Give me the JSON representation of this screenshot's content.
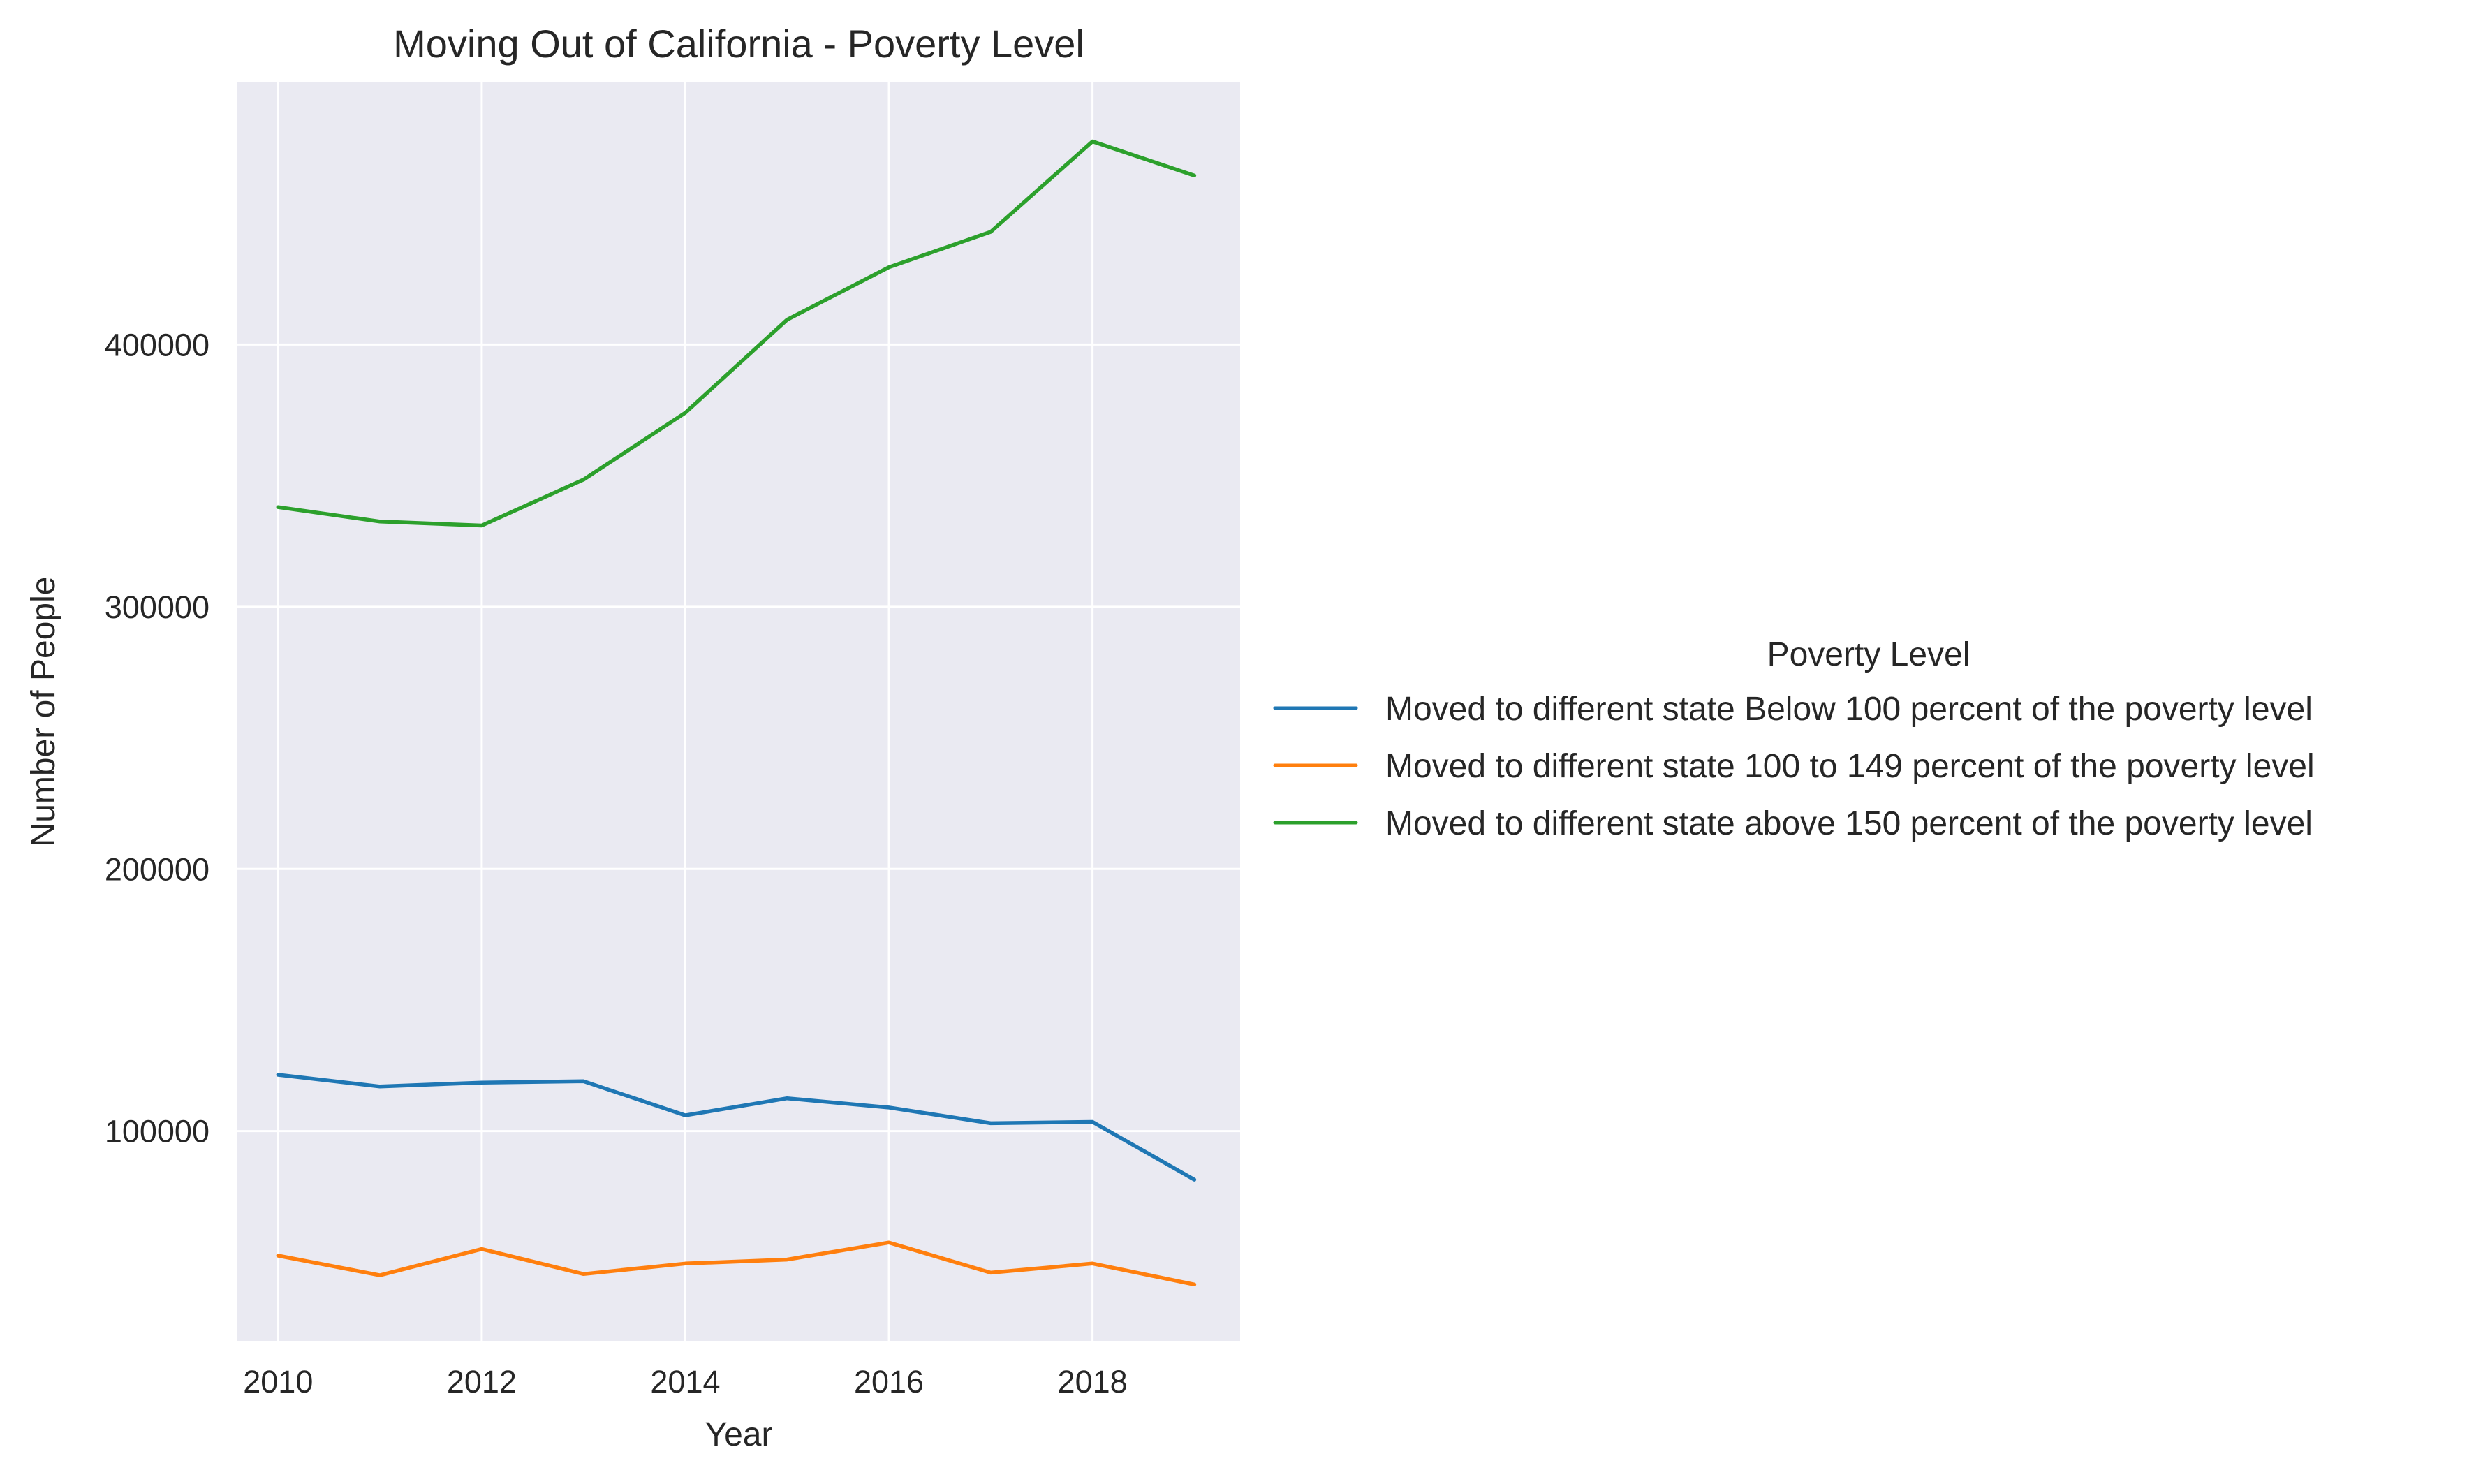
{
  "chart_data": {
    "type": "line",
    "title": "Moving Out of California - Poverty Level",
    "xlabel": "Year",
    "ylabel": "Number of People",
    "x": [
      2010,
      2011,
      2012,
      2013,
      2014,
      2015,
      2016,
      2017,
      2018,
      2019
    ],
    "xlim": [
      2009.6,
      2019.45
    ],
    "ylim": [
      20000,
      500000
    ],
    "xticks": [
      2010,
      2012,
      2014,
      2016,
      2018
    ],
    "yticks": [
      100000,
      200000,
      300000,
      400000
    ],
    "grid": true,
    "legend": {
      "title": "Poverty Level",
      "placement": "outside-right"
    },
    "series": [
      {
        "name": "Moved to different state Below 100 percent of the poverty level",
        "color": "#1f77b4",
        "values": [
          121500,
          117000,
          118500,
          119000,
          106000,
          112500,
          109000,
          103000,
          103500,
          81500
        ]
      },
      {
        "name": "Moved to different state 100 to 149 percent of the poverty level",
        "color": "#ff7f0e",
        "values": [
          52500,
          45000,
          55000,
          45500,
          49500,
          51000,
          57500,
          46000,
          49500,
          41500
        ]
      },
      {
        "name": "Moved to different state above 150 percent of the poverty level",
        "color": "#2ca02c",
        "values": [
          338000,
          332500,
          331000,
          348500,
          374000,
          409500,
          429500,
          443000,
          477500,
          464500
        ]
      }
    ]
  },
  "colors": {
    "plot_background": "#eaeaf2",
    "grid": "#ffffff",
    "text": "#262626"
  }
}
